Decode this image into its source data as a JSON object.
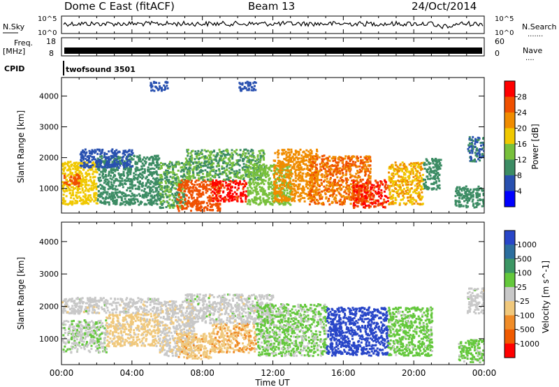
{
  "header": {
    "station": "Dome C East (fitACF)",
    "beam": "Beam 13",
    "date": "24/Oct/2014"
  },
  "nsky_panel": {
    "label": "N.Sky",
    "search_label": "N.Search",
    "search_dots": ".......",
    "tick_top": "10^5",
    "tick_bottom": "10^0"
  },
  "freq_panel": {
    "label_line1": "Freq.",
    "label_line2": "[MHz]",
    "nave_label": "Nave",
    "nave_dots": "....",
    "left_tick_top": "18",
    "left_tick_bottom": "8",
    "right_tick_top": "60",
    "right_tick_bottom": "0"
  },
  "cpid_panel": {
    "label": "CPID",
    "program": "twofsound 3501"
  },
  "power_panel": {
    "ylabel": "Slant Range [km]",
    "colorbar_label": "Power [dB]",
    "yticks": [
      "1000",
      "2000",
      "3000",
      "4000"
    ],
    "colorbar_ticks": [
      "4",
      "8",
      "12",
      "16",
      "20",
      "24",
      "28"
    ],
    "colorbar_colors": [
      "#0000ff",
      "#2850b0",
      "#3c8c64",
      "#78c03c",
      "#f0c800",
      "#f08c00",
      "#f05000",
      "#ff0000"
    ]
  },
  "velocity_panel": {
    "ylabel": "Slant Range [km]",
    "colorbar_label": "Velocity [m s^-1]",
    "yticks": [
      "1000",
      "2000",
      "3000",
      "4000"
    ],
    "colorbar_ticks": [
      "1000",
      "500",
      "100",
      "25",
      "-25",
      "-100",
      "-500",
      "-1000"
    ],
    "colorbar_colors": [
      "#2846c8",
      "#2c6e9e",
      "#3c9664",
      "#64c83c",
      "#c8c8c8",
      "#f0c87c",
      "#f08c28",
      "#f05a00",
      "#ff0000"
    ]
  },
  "time_axis": {
    "label": "Time UT",
    "ticks": [
      "00:00",
      "04:00",
      "08:00",
      "12:00",
      "16:00",
      "20:00",
      "00:00"
    ]
  },
  "chart_data": {
    "type": "heatmap",
    "title": "Dome C East (fitACF)",
    "subtitle": "Beam 13",
    "date": "24/Oct/2014",
    "xlabel": "Time UT",
    "x_hours": [
      0,
      4,
      8,
      12,
      16,
      20,
      24
    ],
    "xlim_hours": [
      0,
      24
    ],
    "ylabel": "Slant Range [km]",
    "ylim_km": [
      200,
      4600
    ],
    "yticks_km": [
      1000,
      2000,
      3000,
      4000
    ],
    "panels": [
      {
        "name": "Power [dB]",
        "range": [
          0,
          32
        ],
        "regions": [
          {
            "t0": 0.0,
            "t1": 2.0,
            "r0": 500,
            "r1": 1900,
            "value": 18
          },
          {
            "t0": 0.1,
            "t1": 1.0,
            "r0": 1100,
            "r1": 1500,
            "value": 26
          },
          {
            "t0": 2.0,
            "t1": 5.5,
            "r0": 500,
            "r1": 2100,
            "value": 10
          },
          {
            "t0": 1.0,
            "t1": 4.0,
            "r0": 1700,
            "r1": 2300,
            "value": 6
          },
          {
            "t0": 5.5,
            "t1": 7.0,
            "r0": 400,
            "r1": 1900,
            "value": 12
          },
          {
            "t0": 6.5,
            "t1": 9.0,
            "r0": 300,
            "r1": 1300,
            "value": 26
          },
          {
            "t0": 8.5,
            "t1": 10.5,
            "r0": 600,
            "r1": 1300,
            "value": 29
          },
          {
            "t0": 7.0,
            "t1": 11.5,
            "r0": 1300,
            "r1": 2300,
            "value": 12
          },
          {
            "t0": 10.5,
            "t1": 13.0,
            "r0": 500,
            "r1": 1800,
            "value": 14
          },
          {
            "t0": 12.0,
            "t1": 14.5,
            "r0": 600,
            "r1": 2300,
            "value": 22
          },
          {
            "t0": 14.0,
            "t1": 17.5,
            "r0": 500,
            "r1": 2100,
            "value": 24
          },
          {
            "t0": 16.5,
            "t1": 18.5,
            "r0": 400,
            "r1": 1300,
            "value": 28
          },
          {
            "t0": 18.5,
            "t1": 20.5,
            "r0": 500,
            "r1": 1900,
            "value": 20
          },
          {
            "t0": 20.5,
            "t1": 21.5,
            "r0": 1000,
            "r1": 2000,
            "value": 10
          },
          {
            "t0": 22.3,
            "t1": 24.0,
            "r0": 400,
            "r1": 1100,
            "value": 10
          },
          {
            "t0": 23.0,
            "t1": 24.0,
            "r0": 1900,
            "r1": 2700,
            "value": 8
          },
          {
            "t0": 10.0,
            "t1": 11.0,
            "r0": 4200,
            "r1": 4500,
            "value": 6
          },
          {
            "t0": 5.0,
            "t1": 6.0,
            "r0": 4200,
            "r1": 4500,
            "value": 6
          }
        ]
      },
      {
        "name": "Velocity [m s^-1]",
        "range": [
          -1000,
          1000
        ],
        "regions": [
          {
            "t0": 0.0,
            "t1": 5.5,
            "r0": 1800,
            "r1": 2300,
            "value": 0
          },
          {
            "t0": 0.0,
            "t1": 2.5,
            "r0": 600,
            "r1": 1600,
            "value": 60
          },
          {
            "t0": 2.5,
            "t1": 5.5,
            "r0": 800,
            "r1": 1800,
            "value": -200
          },
          {
            "t0": 5.5,
            "t1": 7.5,
            "r0": 500,
            "r1": 2200,
            "value": -50
          },
          {
            "t0": 6.5,
            "t1": 8.5,
            "r0": 400,
            "r1": 1200,
            "value": -250
          },
          {
            "t0": 8.5,
            "t1": 11.0,
            "r0": 600,
            "r1": 1500,
            "value": -300
          },
          {
            "t0": 7.0,
            "t1": 12.0,
            "r0": 1500,
            "r1": 2400,
            "value": 0
          },
          {
            "t0": 11.0,
            "t1": 15.0,
            "r0": 500,
            "r1": 2100,
            "value": 150
          },
          {
            "t0": 15.0,
            "t1": 18.5,
            "r0": 500,
            "r1": 2000,
            "value": 900
          },
          {
            "t0": 18.5,
            "t1": 21.0,
            "r0": 500,
            "r1": 2000,
            "value": 200
          },
          {
            "t0": 22.5,
            "t1": 24.0,
            "r0": 300,
            "r1": 1000,
            "value": 200
          },
          {
            "t0": 23.0,
            "t1": 24.0,
            "r0": 1800,
            "r1": 2600,
            "value": 0
          }
        ]
      }
    ],
    "colorbar_power_db": [
      4,
      8,
      12,
      16,
      20,
      24,
      28
    ],
    "colorbar_velocity_ms": [
      1000,
      500,
      100,
      25,
      -25,
      -100,
      -500,
      -1000
    ]
  }
}
